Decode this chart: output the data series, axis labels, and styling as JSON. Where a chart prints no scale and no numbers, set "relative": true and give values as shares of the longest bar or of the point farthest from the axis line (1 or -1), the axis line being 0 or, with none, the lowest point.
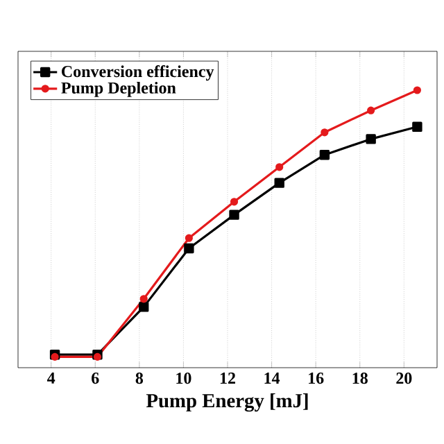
{
  "chart_data": {
    "type": "line",
    "xlabel": "Pump Energy [mJ]",
    "relative": true,
    "xlim": [
      2.5,
      21.5
    ],
    "xticks": [
      4,
      6,
      8,
      10,
      12,
      14,
      16,
      18,
      20
    ],
    "grid": "x",
    "legend": "top left",
    "line_style": "solid",
    "series": [
      {
        "name": "Conversion efficiency",
        "color": "#000000",
        "marker": "square",
        "x": [
          4.17,
          6.1,
          8.2,
          10.25,
          12.3,
          14.35,
          16.4,
          18.5,
          20.6
        ],
        "values": [
          0.047,
          0.047,
          0.219,
          0.43,
          0.551,
          0.666,
          0.767,
          0.824,
          0.868
        ]
      },
      {
        "name": "Pump Depletion",
        "color": "#e41a1c",
        "marker": "circle",
        "x": [
          4.17,
          6.1,
          8.2,
          10.25,
          12.3,
          14.35,
          16.4,
          18.5,
          20.6
        ],
        "values": [
          0.039,
          0.039,
          0.248,
          0.467,
          0.598,
          0.723,
          0.848,
          0.927,
          1.0
        ]
      }
    ]
  }
}
